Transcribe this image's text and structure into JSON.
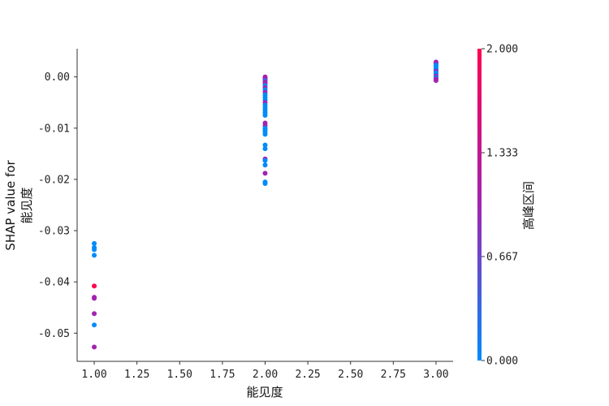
{
  "chart_data": {
    "type": "scatter",
    "title": "",
    "xlabel": "能见度",
    "ylabel_lines": [
      "SHAP value for",
      "能见度"
    ],
    "xlim": [
      0.9,
      3.1
    ],
    "ylim": [
      -0.0555,
      0.0055
    ],
    "xticks": [
      1.0,
      1.25,
      1.5,
      1.75,
      2.0,
      2.25,
      2.5,
      2.75,
      3.0
    ],
    "xtick_labels": [
      "1.00",
      "1.25",
      "1.50",
      "1.75",
      "2.00",
      "2.25",
      "2.50",
      "2.75",
      "3.00"
    ],
    "yticks": [
      0.0,
      -0.01,
      -0.02,
      -0.03,
      -0.04,
      -0.05
    ],
    "ytick_labels": [
      "0.00",
      "-0.01",
      "-0.02",
      "-0.03",
      "-0.04",
      "-0.05"
    ],
    "grid": false,
    "colorbar": {
      "label": "高峰区间",
      "min": 0.0,
      "max": 2.0,
      "tick_labels": [
        "2.000",
        "1.333",
        "0.667",
        "0.000"
      ],
      "tick_values": [
        2.0,
        1.333,
        0.667,
        0.0
      ],
      "colors": [
        "#008bfb",
        "#a223b0",
        "#ff0051"
      ]
    },
    "points": [
      {
        "x": 1.0,
        "y": -0.0325,
        "c": 0
      },
      {
        "x": 1.0,
        "y": -0.0333,
        "c": 0
      },
      {
        "x": 1.0,
        "y": -0.0337,
        "c": 0
      },
      {
        "x": 1.0,
        "y": -0.0348,
        "c": 0
      },
      {
        "x": 1.0,
        "y": -0.0408,
        "c": 2
      },
      {
        "x": 1.0,
        "y": -0.043,
        "c": 1
      },
      {
        "x": 1.0,
        "y": -0.0432,
        "c": 1
      },
      {
        "x": 1.0,
        "y": -0.0462,
        "c": 1
      },
      {
        "x": 1.0,
        "y": -0.0484,
        "c": 0
      },
      {
        "x": 1.0,
        "y": -0.0527,
        "c": 1
      },
      {
        "x": 2.0,
        "y": 0.0,
        "c": 1
      },
      {
        "x": 2.0,
        "y": -0.0002,
        "c": 1
      },
      {
        "x": 2.0,
        "y": -0.0004,
        "c": 1
      },
      {
        "x": 2.0,
        "y": -0.0006,
        "c": 1
      },
      {
        "x": 2.0,
        "y": -0.0008,
        "c": 0
      },
      {
        "x": 2.0,
        "y": -0.001,
        "c": 1
      },
      {
        "x": 2.0,
        "y": -0.0013,
        "c": 1
      },
      {
        "x": 2.0,
        "y": -0.0017,
        "c": 0
      },
      {
        "x": 2.0,
        "y": -0.0021,
        "c": 1
      },
      {
        "x": 2.0,
        "y": -0.0025,
        "c": 0
      },
      {
        "x": 2.0,
        "y": -0.003,
        "c": 1
      },
      {
        "x": 2.0,
        "y": -0.0035,
        "c": 0
      },
      {
        "x": 2.0,
        "y": -0.004,
        "c": 0
      },
      {
        "x": 2.0,
        "y": -0.0045,
        "c": 0
      },
      {
        "x": 2.0,
        "y": -0.005,
        "c": 1
      },
      {
        "x": 2.0,
        "y": -0.0055,
        "c": 0
      },
      {
        "x": 2.0,
        "y": -0.006,
        "c": 0
      },
      {
        "x": 2.0,
        "y": -0.0065,
        "c": 0
      },
      {
        "x": 2.0,
        "y": -0.007,
        "c": 0
      },
      {
        "x": 2.0,
        "y": -0.0075,
        "c": 0
      },
      {
        "x": 2.0,
        "y": -0.009,
        "c": 1
      },
      {
        "x": 2.0,
        "y": -0.0095,
        "c": 1
      },
      {
        "x": 2.0,
        "y": -0.01,
        "c": 0
      },
      {
        "x": 2.0,
        "y": -0.0103,
        "c": 0
      },
      {
        "x": 2.0,
        "y": -0.0107,
        "c": 0
      },
      {
        "x": 2.0,
        "y": -0.0112,
        "c": 0
      },
      {
        "x": 2.0,
        "y": -0.0133,
        "c": 0
      },
      {
        "x": 2.0,
        "y": -0.014,
        "c": 0
      },
      {
        "x": 2.0,
        "y": -0.016,
        "c": 1
      },
      {
        "x": 2.0,
        "y": -0.0163,
        "c": 0
      },
      {
        "x": 2.0,
        "y": -0.0172,
        "c": 0
      },
      {
        "x": 2.0,
        "y": -0.0188,
        "c": 1
      },
      {
        "x": 2.0,
        "y": -0.0205,
        "c": 0
      },
      {
        "x": 2.0,
        "y": -0.0208,
        "c": 0
      },
      {
        "x": 3.0,
        "y": 0.0029,
        "c": 1
      },
      {
        "x": 3.0,
        "y": 0.0026,
        "c": 1
      },
      {
        "x": 3.0,
        "y": 0.0023,
        "c": 0
      },
      {
        "x": 3.0,
        "y": 0.002,
        "c": 0
      },
      {
        "x": 3.0,
        "y": 0.0017,
        "c": 0
      },
      {
        "x": 3.0,
        "y": 0.0014,
        "c": 0
      },
      {
        "x": 3.0,
        "y": 0.0011,
        "c": 1
      },
      {
        "x": 3.0,
        "y": 0.0008,
        "c": 0
      },
      {
        "x": 3.0,
        "y": 0.0005,
        "c": 0
      },
      {
        "x": 3.0,
        "y": 0.0002,
        "c": 1
      },
      {
        "x": 3.0,
        "y": -0.0001,
        "c": 0
      },
      {
        "x": 3.0,
        "y": -0.0004,
        "c": 1
      },
      {
        "x": 3.0,
        "y": -0.0007,
        "c": 1
      }
    ]
  }
}
